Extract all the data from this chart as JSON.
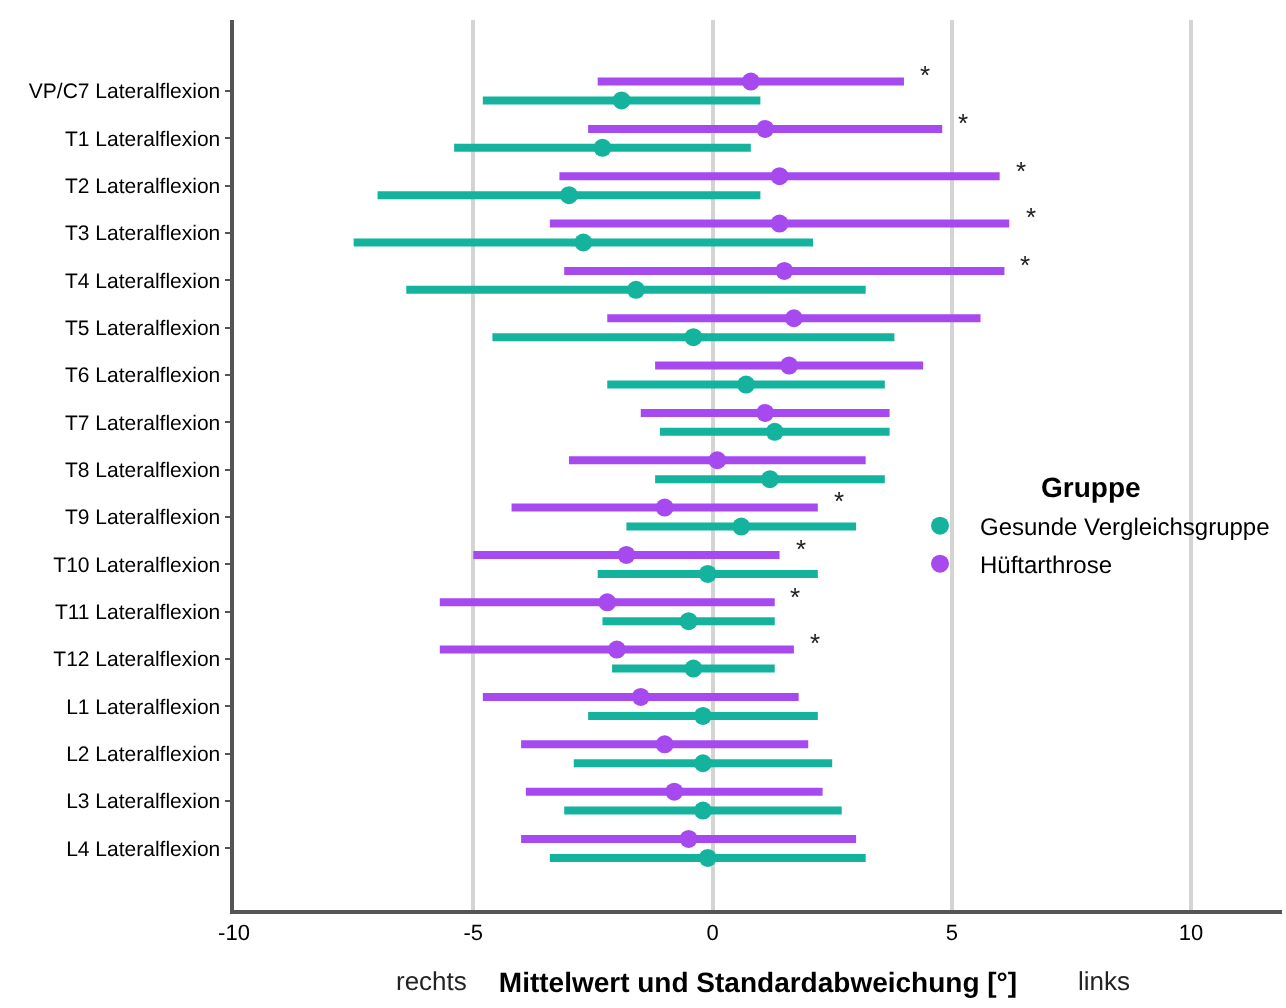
{
  "chart_data": {
    "type": "scatter",
    "orientation": "horizontal",
    "xlabel": "Mittelwert und Standardabweichung [°]",
    "legend_title": "Gruppe",
    "legend": "right",
    "grid": "x",
    "marker": "circle",
    "categories": [
      "VP/C7 Lateralflexion",
      "T1 Lateralflexion",
      "T2 Lateralflexion",
      "T3 Lateralflexion",
      "T4 Lateralflexion",
      "T5 Lateralflexion",
      "T6 Lateralflexion",
      "T7 Lateralflexion",
      "T8 Lateralflexion",
      "T9 Lateralflexion",
      "T10 Lateralflexion",
      "T11 Lateralflexion",
      "T12 Lateralflexion",
      "L1 Lateralflexion",
      "L2 Lateralflexion",
      "L3 Lateralflexion",
      "L4 Lateralflexion"
    ],
    "xlim": [
      -10,
      11.9
    ],
    "xticks": [
      -10,
      -5,
      0,
      5,
      10
    ],
    "series": [
      {
        "name": "Gesunde Vergleichsgruppe",
        "color": "#14b39e",
        "values": [
          -1.9,
          -2.3,
          -3.0,
          -2.7,
          -1.6,
          -0.4,
          0.7,
          1.3,
          1.2,
          0.6,
          -0.1,
          -0.5,
          -0.4,
          -0.2,
          -0.2,
          -0.2,
          -0.1
        ],
        "errors": [
          2.9,
          3.1,
          4.0,
          4.8,
          4.8,
          4.2,
          2.9,
          2.4,
          2.4,
          2.4,
          2.3,
          1.8,
          1.7,
          2.4,
          2.7,
          2.9,
          3.3
        ]
      },
      {
        "name": "Hüftarthrose",
        "color": "#a64af0",
        "values": [
          0.8,
          1.1,
          1.4,
          1.4,
          1.5,
          1.7,
          1.6,
          1.1,
          0.1,
          -1.0,
          -1.8,
          -2.2,
          -2.0,
          -1.5,
          -1.0,
          -0.8,
          -0.5
        ],
        "errors": [
          3.2,
          3.7,
          4.6,
          4.8,
          4.6,
          3.9,
          2.8,
          2.6,
          3.1,
          3.2,
          3.2,
          3.5,
          3.7,
          3.3,
          3.0,
          3.1,
          3.5
        ]
      }
    ],
    "annotations": [
      "rechts",
      "links",
      {
        "text": "*",
        "x": 4.0,
        "y": "VP/C7 Lateralflexion"
      },
      {
        "text": "*",
        "x": 4.8,
        "y": "T1 Lateralflexion"
      },
      {
        "text": "*",
        "x": 6.0,
        "y": "T2 Lateralflexion"
      },
      {
        "text": "*",
        "x": 6.2,
        "y": "T3 Lateralflexion"
      },
      {
        "text": "*",
        "x": 6.1,
        "y": "T4 Lateralflexion"
      },
      {
        "text": "*",
        "x": 2.2,
        "y": "T9 Lateralflexion"
      },
      {
        "text": "*",
        "x": 1.4,
        "y": "T10 Lateralflexion"
      },
      {
        "text": "*",
        "x": 1.3,
        "y": "T11 Lateralflexion"
      },
      {
        "text": "*",
        "x": 1.7,
        "y": "T12 Lateralflexion"
      }
    ]
  }
}
